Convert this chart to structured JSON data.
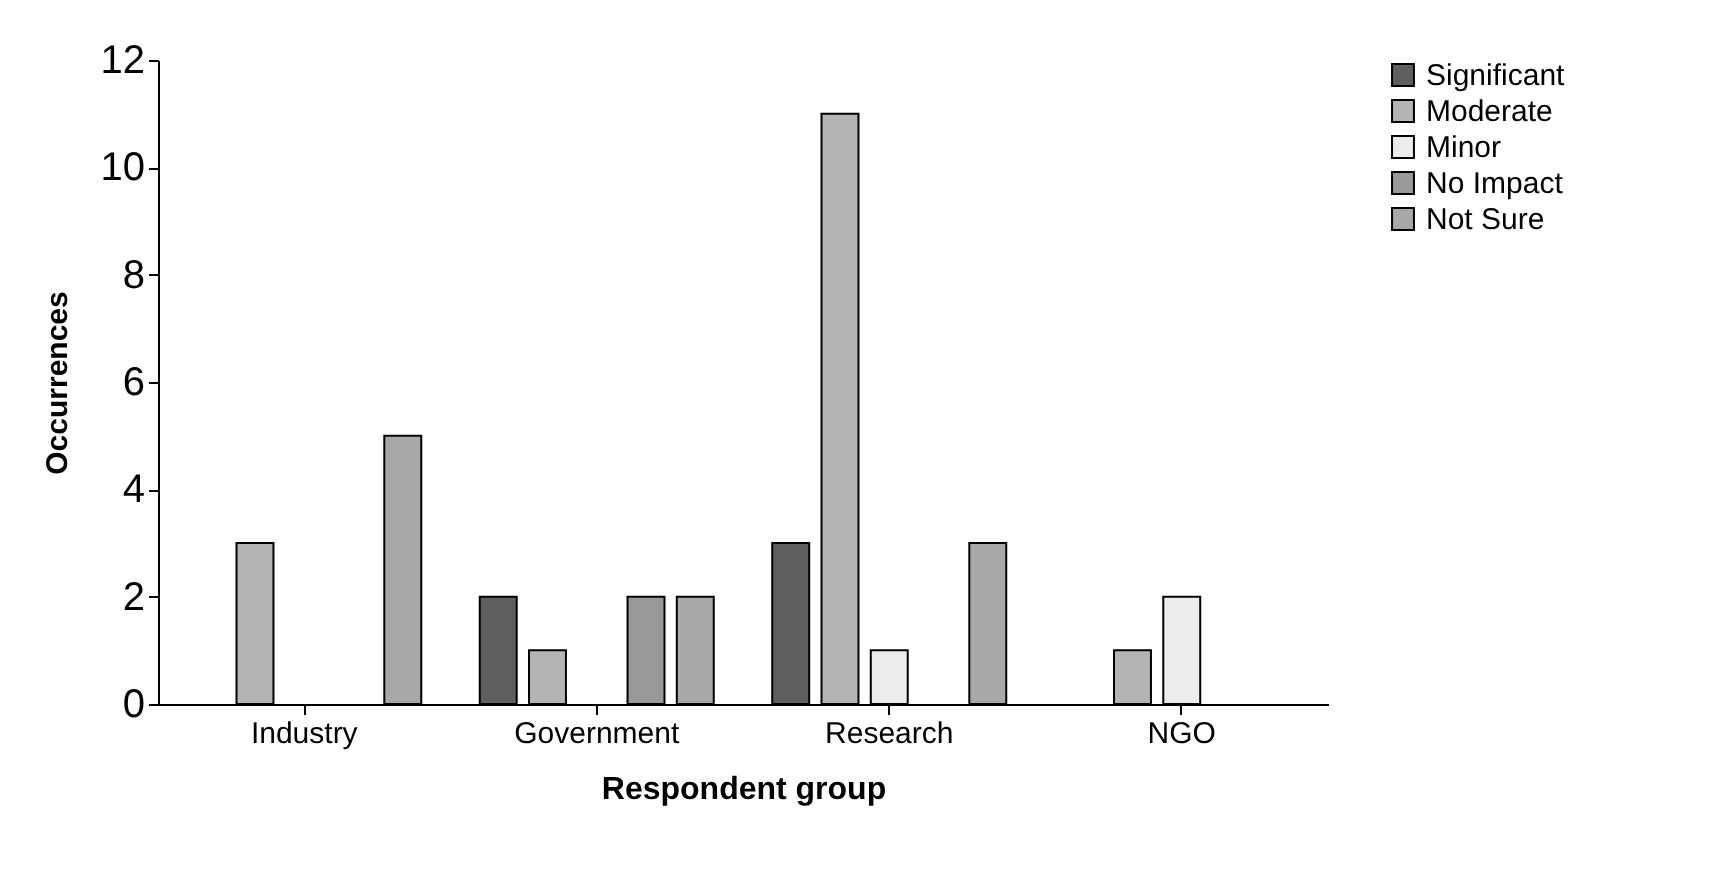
{
  "chart_data": {
    "type": "bar",
    "xlabel": "Respondent group",
    "ylabel": "Occurrences",
    "categories": [
      "Industry",
      "Government",
      "Research",
      "NGO"
    ],
    "series": [
      {
        "name": "Significant",
        "color": "#5f5f5f",
        "values": [
          0,
          2,
          3,
          0
        ]
      },
      {
        "name": "Moderate",
        "color": "#b4b4b4",
        "values": [
          3,
          1,
          11,
          1
        ]
      },
      {
        "name": "Minor",
        "color": "#ececec",
        "values": [
          0,
          0,
          1,
          2
        ]
      },
      {
        "name": "No Impact",
        "color": "#999999",
        "values": [
          0,
          2,
          0,
          0
        ]
      },
      {
        "name": "Not Sure",
        "color": "#a8a8a8",
        "values": [
          5,
          2,
          3,
          0
        ]
      }
    ],
    "ylim": [
      0,
      12
    ],
    "yticks": [
      0,
      2,
      4,
      6,
      8,
      10,
      12
    ],
    "grid": false,
    "legend": "right"
  }
}
